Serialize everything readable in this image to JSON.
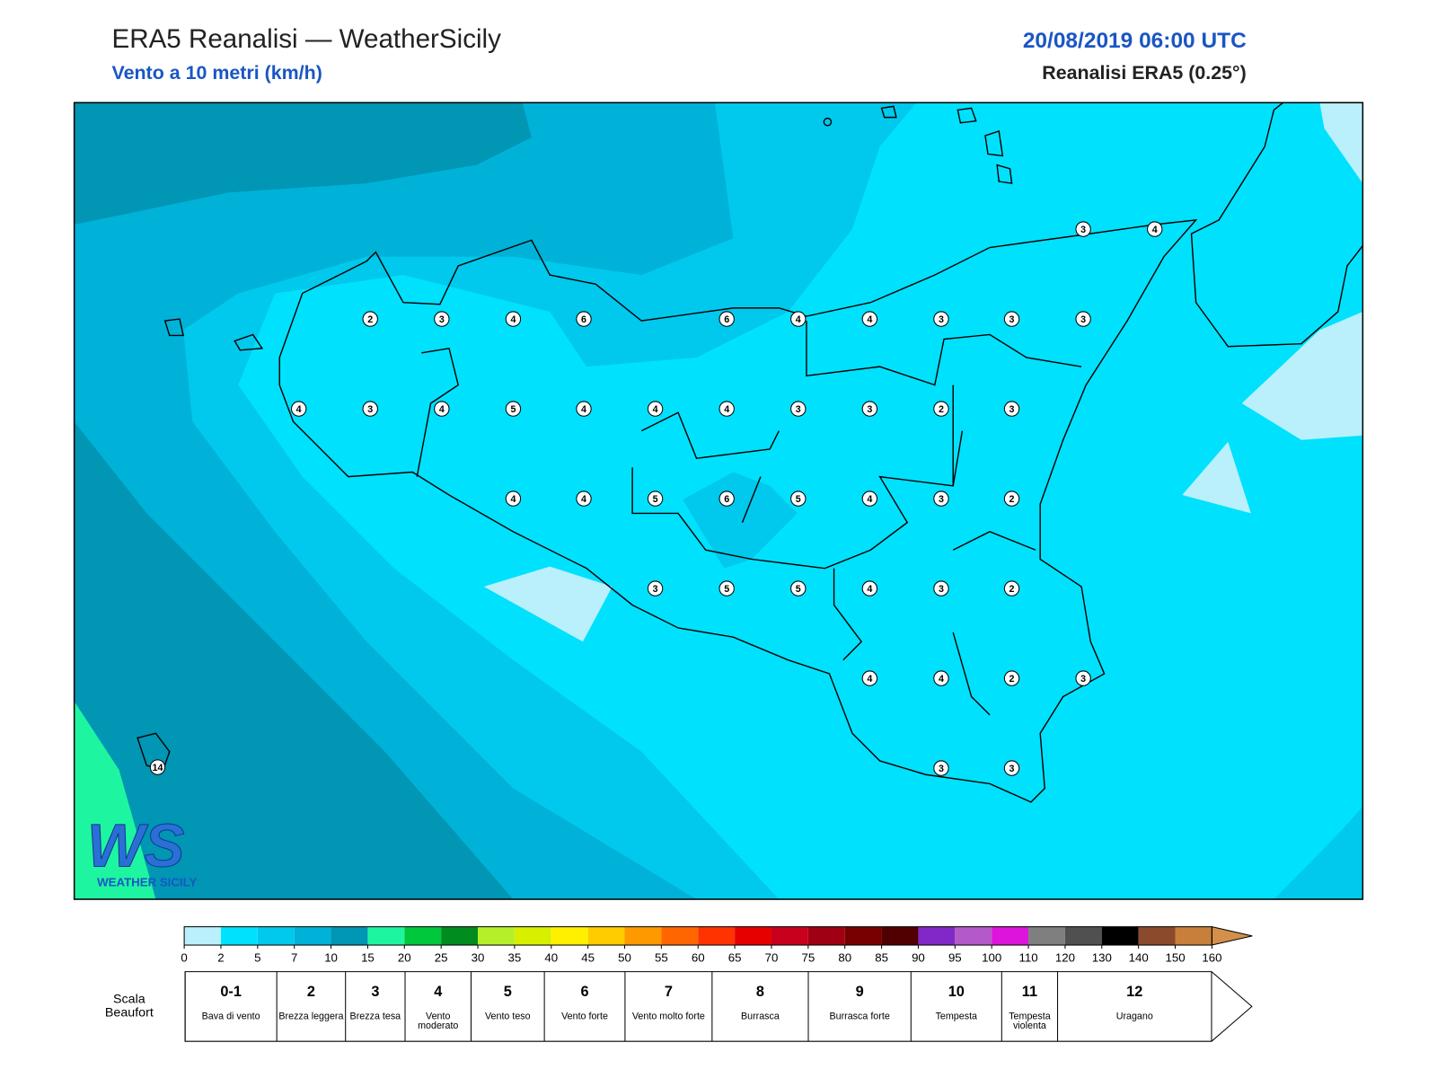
{
  "header": {
    "title": "ERA5 Reanalisi — WeatherSicily",
    "subtitle": "Vento a 10 metri (km/h)",
    "datetime": "20/08/2019 06:00 UTC",
    "source": "Reanalisi ERA5 (0.25°)"
  },
  "stations": [
    2,
    3,
    4,
    6,
    6,
    4,
    4,
    3,
    3,
    3,
    3,
    4,
    4,
    3,
    4,
    5,
    4,
    4,
    4,
    3,
    3,
    2,
    3,
    4,
    4,
    5,
    6,
    5,
    4,
    3,
    2,
    3,
    5,
    5,
    4,
    3,
    2,
    4,
    4,
    2,
    3,
    3,
    3,
    14
  ],
  "logo": {
    "mark": "WS",
    "text": "WEATHER SICILY"
  },
  "colorbar": {
    "ticks": [
      0,
      2,
      5,
      7,
      10,
      15,
      20,
      25,
      30,
      35,
      40,
      45,
      50,
      55,
      60,
      65,
      70,
      75,
      80,
      85,
      90,
      95,
      100,
      110,
      120,
      130,
      140,
      150,
      160
    ],
    "colors": [
      "#b9f0fc",
      "#00e1fe",
      "#00c9ed",
      "#00b2d8",
      "#0096b4",
      "#1ef5a0",
      "#00c83c",
      "#008c1e",
      "#b4f02a",
      "#d8f000",
      "#fff000",
      "#ffcc00",
      "#ff9900",
      "#ff6600",
      "#ff3300",
      "#e60000",
      "#c8001e",
      "#a00014",
      "#780000",
      "#500000",
      "#8228c8",
      "#b45ac8",
      "#dc14dc",
      "#7f7f7f",
      "#505050",
      "#000000",
      "#8b4a2b",
      "#c87f3c"
    ],
    "over_color": "#d2904a"
  },
  "beaufort": {
    "label": [
      "Scala",
      "Beaufort"
    ],
    "classes": [
      {
        "force": "0-1",
        "name": "Bava di vento"
      },
      {
        "force": "2",
        "name": "Brezza leggera"
      },
      {
        "force": "3",
        "name": "Brezza tesa"
      },
      {
        "force": "4",
        "name": "Vento moderato"
      },
      {
        "force": "5",
        "name": "Vento teso"
      },
      {
        "force": "6",
        "name": "Vento forte"
      },
      {
        "force": "7",
        "name": "Vento molto forte"
      },
      {
        "force": "8",
        "name": "Burrasca"
      },
      {
        "force": "9",
        "name": "Burrasca forte"
      },
      {
        "force": "10",
        "name": "Tempesta"
      },
      {
        "force": "11",
        "name": "Tempesta violenta"
      },
      {
        "force": "12",
        "name": "Uragano"
      }
    ]
  }
}
